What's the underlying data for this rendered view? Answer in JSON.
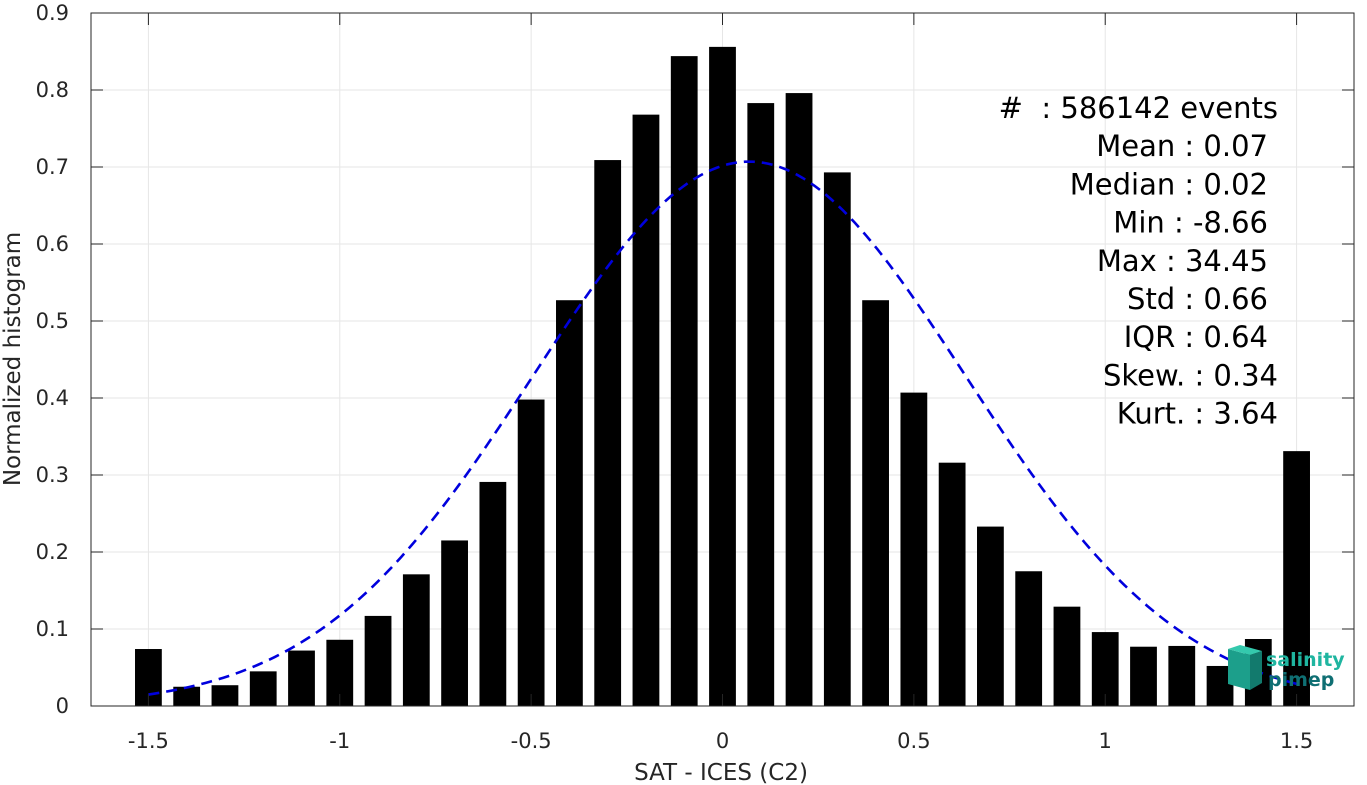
{
  "chart_data": {
    "type": "bar",
    "xlabel": "SAT - ICES (C2)",
    "ylabel": "Normalized histogram",
    "xlim": [
      -1.65,
      1.65
    ],
    "ylim": [
      0,
      0.9
    ],
    "grid": true,
    "x_ticks": [
      -1.5,
      -1,
      -0.5,
      0,
      0.5,
      1,
      1.5
    ],
    "x_tick_labels": [
      "-1.5",
      "-1",
      "-0.5",
      "0",
      "0.5",
      "1",
      "1.5"
    ],
    "y_ticks": [
      0,
      0.1,
      0.2,
      0.3,
      0.4,
      0.5,
      0.6,
      0.7,
      0.8,
      0.9
    ],
    "y_tick_labels": [
      "0",
      "0.1",
      "0.2",
      "0.3",
      "0.4",
      "0.5",
      "0.6",
      "0.7",
      "0.8",
      "0.9"
    ],
    "bar_color": "#000000",
    "bars": {
      "x": [
        -1.5,
        -1.4,
        -1.3,
        -1.2,
        -1.1,
        -1.0,
        -0.9,
        -0.8,
        -0.7,
        -0.6,
        -0.5,
        -0.4,
        -0.3,
        -0.2,
        -0.1,
        0.0,
        0.1,
        0.2,
        0.3,
        0.4,
        0.5,
        0.6,
        0.7,
        0.8,
        0.9,
        1.0,
        1.1,
        1.2,
        1.3,
        1.4,
        1.5
      ],
      "values": [
        0.074,
        0.025,
        0.027,
        0.045,
        0.072,
        0.086,
        0.117,
        0.171,
        0.215,
        0.291,
        0.398,
        0.527,
        0.709,
        0.768,
        0.844,
        0.856,
        0.783,
        0.796,
        0.693,
        0.527,
        0.407,
        0.316,
        0.233,
        0.175,
        0.129,
        0.096,
        0.077,
        0.078,
        0.052,
        0.087,
        0.331
      ]
    },
    "fit_curve": {
      "style": "dashed",
      "color": "#0000dd",
      "mean": 0.07,
      "std": 0.565,
      "peak": 0.707,
      "x_range": [
        -1.5,
        1.5
      ]
    },
    "stats_lines": [
      "#  : 586142 events",
      "Mean : 0.07",
      "Median : 0.02",
      "Min : -8.66",
      "Max : 34.45",
      "Std : 0.66",
      "IQR : 0.64",
      "Skew. : 0.34",
      "Kurt. : 3.64"
    ]
  },
  "logo": {
    "line1": "salinity",
    "line2": "pimep",
    "color1": "#1fb5a0",
    "color2": "#0f6f73"
  }
}
